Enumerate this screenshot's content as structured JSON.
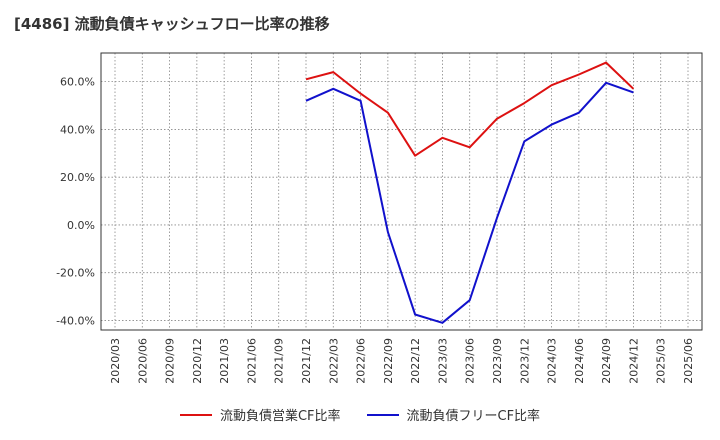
{
  "title": "[4486]  流動負債キャッシュフロー比率の推移",
  "chart_data": {
    "type": "line",
    "title": "[4486]  流動負債キャッシュフロー比率の推移",
    "xlabel": "",
    "ylabel": "",
    "x": [
      "2020/03",
      "2020/06",
      "2020/09",
      "2020/12",
      "2021/03",
      "2021/06",
      "2021/09",
      "2021/12",
      "2022/03",
      "2022/06",
      "2022/09",
      "2022/12",
      "2023/03",
      "2023/06",
      "2023/09",
      "2023/12",
      "2024/03",
      "2024/06",
      "2024/09",
      "2024/12",
      "2025/03",
      "2025/06"
    ],
    "y_ticks": [
      "60.0%",
      "40.0%",
      "20.0%",
      "0.0%",
      "-20.0%",
      "-40.0%"
    ],
    "ylim": [
      -44,
      72
    ],
    "grid": true,
    "legend_position": "bottom",
    "series": [
      {
        "name": "流動負債営業CF比率",
        "color": "#dd1111",
        "values": [
          null,
          null,
          null,
          null,
          null,
          null,
          null,
          61.0,
          64.0,
          55.0,
          47.0,
          29.0,
          36.5,
          32.5,
          44.5,
          51.0,
          58.5,
          63.0,
          68.0,
          57.0,
          null,
          null
        ]
      },
      {
        "name": "流動負債フリーCF比率",
        "color": "#1111cc",
        "values": [
          null,
          null,
          null,
          null,
          null,
          null,
          null,
          52.0,
          57.0,
          52.0,
          -3.0,
          -37.5,
          -41.0,
          -31.5,
          3.0,
          35.0,
          42.0,
          47.0,
          59.5,
          55.5,
          null,
          null
        ]
      }
    ]
  }
}
